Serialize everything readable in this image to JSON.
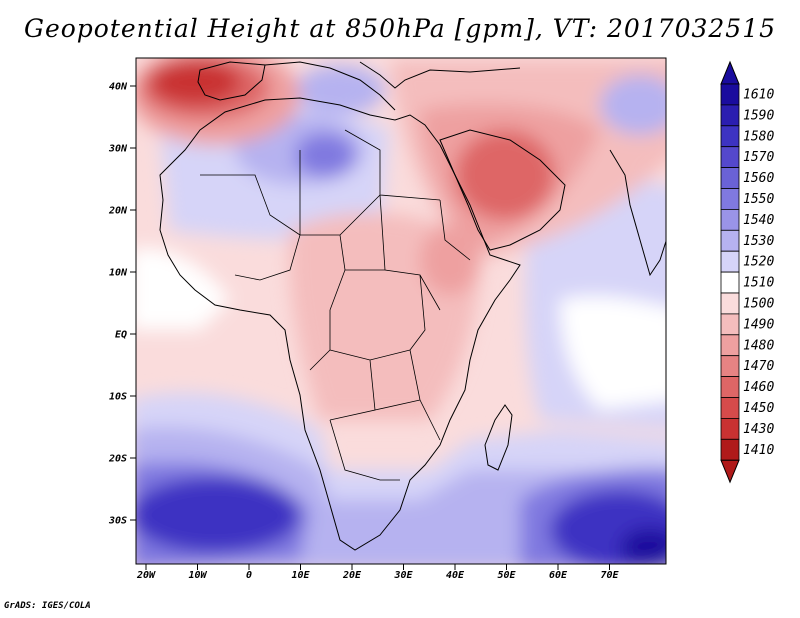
{
  "title": "Geopotential Height at 850hPa [gpm], VT: 2017032515",
  "footer": "GrADS: IGES/COLA",
  "lat_labels": [
    "40N",
    "30N",
    "20N",
    "10N",
    "EQ",
    "10S",
    "20S",
    "30S"
  ],
  "lon_labels": [
    "20W",
    "10W",
    "0",
    "10E",
    "20E",
    "30E",
    "40E",
    "50E",
    "60E",
    "70E"
  ],
  "colorbar": {
    "labels": [
      "1610",
      "1590",
      "1580",
      "1570",
      "1560",
      "1550",
      "1540",
      "1530",
      "1520",
      "1510",
      "1500",
      "1490",
      "1480",
      "1470",
      "1460",
      "1450",
      "1430",
      "1410"
    ],
    "colors": [
      "#1a0c9e",
      "#2b1eb0",
      "#3d33c2",
      "#5448cc",
      "#6a62d6",
      "#8079e0",
      "#9a94e8",
      "#b6b2f0",
      "#d6d4f8",
      "#ffffff",
      "#fadcdc",
      "#f4bdbd",
      "#eea0a0",
      "#e68383",
      "#de6666",
      "#d64b4b",
      "#c93232",
      "#b01a1a"
    ]
  },
  "map": {
    "background_color": "#fadcdc",
    "region_colors": {
      "warm_light": "#f4bdbd",
      "warm_mid": "#eea0a0",
      "warm_strong": "#de6666",
      "warm_deep": "#c93232",
      "white": "#ffffff",
      "cool_light": "#d6d4f8",
      "cool_mid": "#b6b2f0",
      "cool_strong": "#8079e0",
      "cool_deep": "#3d33c2",
      "cool_darkest": "#1a0c9e"
    }
  }
}
